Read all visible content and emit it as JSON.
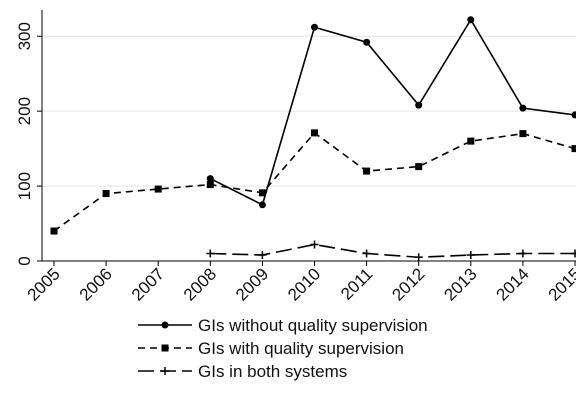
{
  "chart_data": {
    "type": "line",
    "categories": [
      "2005",
      "2006",
      "2007",
      "2008",
      "2009",
      "2010",
      "2011",
      "2012",
      "2013",
      "2014",
      "2015"
    ],
    "series": [
      {
        "name": "GIs without quality supervision",
        "color": "#000000",
        "dash": "solid",
        "marker": "circle",
        "values": [
          null,
          null,
          null,
          110,
          75,
          312,
          292,
          208,
          322,
          204,
          195
        ]
      },
      {
        "name": "GIs with quality supervision",
        "color": "#000000",
        "dash": "dashed",
        "marker": "square",
        "values": [
          40,
          90,
          96,
          102,
          91,
          171,
          120,
          126,
          160,
          170,
          150
        ]
      },
      {
        "name": "GIs in both systems",
        "color": "#000000",
        "dash": "longdash",
        "marker": "plus",
        "values": [
          null,
          null,
          null,
          10,
          8,
          22,
          10,
          5,
          8,
          10,
          10
        ]
      }
    ],
    "ylim": [
      0,
      335
    ],
    "yticks": [
      0,
      100,
      200,
      300
    ],
    "grid": true,
    "legend": "bottom"
  }
}
